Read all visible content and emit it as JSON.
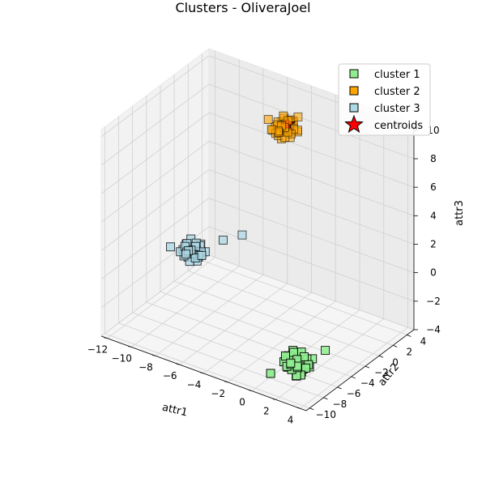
{
  "chart_data": {
    "type": "scatter",
    "projection": "3d",
    "title": "Clusters - OliveraJoel",
    "xlabel": "attr1",
    "ylabel": "attr2",
    "zlabel": "attr3",
    "xlim": [
      -12.5,
      4.5
    ],
    "ylim": [
      -10.5,
      5
    ],
    "zlim": [
      -4,
      10.5
    ],
    "xticks": [
      "−12",
      "−10",
      "−8",
      "−6",
      "−4",
      "−2",
      "0",
      "2",
      "4"
    ],
    "yticks": [
      "−10",
      "−8",
      "−6",
      "−4",
      "−2",
      "0",
      "2",
      "4"
    ],
    "zticks": [
      "−4",
      "−2",
      "0",
      "2",
      "4",
      "6",
      "8",
      "10"
    ],
    "xtick_values": [
      -12,
      -10,
      -8,
      -6,
      -4,
      -2,
      0,
      2,
      4
    ],
    "ytick_values": [
      -10,
      -8,
      -6,
      -4,
      -2,
      0,
      2,
      4
    ],
    "ztick_values": [
      -4,
      -2,
      0,
      2,
      4,
      6,
      8,
      10
    ],
    "grid": true,
    "legend": {
      "position": "top-right"
    },
    "marker": "square",
    "series": [
      {
        "name": "cluster 1",
        "color": "#90ee90",
        "center": [
          2.0,
          -7.5,
          -2.5
        ],
        "points": [
          [
            2.0,
            -7.5,
            -2.5
          ],
          [
            2.6,
            -7.1,
            -2.2
          ],
          [
            1.4,
            -7.9,
            -2.8
          ],
          [
            2.3,
            -8.0,
            -2.0
          ],
          [
            1.7,
            -7.0,
            -3.0
          ],
          [
            2.8,
            -7.6,
            -2.6
          ],
          [
            1.2,
            -7.4,
            -2.3
          ],
          [
            2.1,
            -6.8,
            -2.7
          ],
          [
            1.9,
            -8.2,
            -2.4
          ],
          [
            2.5,
            -7.8,
            -3.1
          ],
          [
            1.5,
            -7.2,
            -1.9
          ],
          [
            2.4,
            -7.3,
            -2.9
          ],
          [
            1.6,
            -7.7,
            -2.1
          ],
          [
            2.2,
            -7.9,
            -3.2
          ],
          [
            1.8,
            -7.1,
            -2.0
          ],
          [
            2.9,
            -7.4,
            -2.4
          ],
          [
            1.1,
            -7.8,
            -2.6
          ],
          [
            2.0,
            -8.4,
            -2.2
          ],
          [
            2.7,
            -6.9,
            -2.8
          ],
          [
            1.3,
            -7.6,
            -3.0
          ],
          [
            2.2,
            -7.2,
            -1.8
          ],
          [
            1.8,
            -7.9,
            -2.9
          ],
          [
            2.4,
            -8.1,
            -2.5
          ],
          [
            1.6,
            -6.9,
            -2.4
          ],
          [
            2.0,
            -7.6,
            -3.4
          ],
          [
            3.0,
            -7.0,
            -2.1
          ],
          [
            1.0,
            -7.3,
            -2.7
          ],
          [
            2.5,
            -8.3,
            -2.3
          ],
          [
            1.4,
            -8.1,
            -2.0
          ],
          [
            2.6,
            -7.5,
            -1.9
          ],
          [
            3.2,
            -5.5,
            -2.0
          ],
          [
            0.8,
            -9.2,
            -3.0
          ],
          [
            2.1,
            -7.0,
            -3.3
          ],
          [
            1.9,
            -7.8,
            -1.7
          ]
        ]
      },
      {
        "name": "cluster 2",
        "color": "#ffa500",
        "center": [
          -4.5,
          2.0,
          8.5
        ],
        "points": [
          [
            -4.5,
            2.0,
            8.5
          ],
          [
            -4.0,
            2.4,
            8.9
          ],
          [
            -5.0,
            1.6,
            8.1
          ],
          [
            -4.2,
            1.5,
            8.8
          ],
          [
            -4.8,
            2.5,
            8.2
          ],
          [
            -3.9,
            1.9,
            8.3
          ],
          [
            -5.1,
            2.1,
            8.7
          ],
          [
            -4.4,
            2.7,
            8.6
          ],
          [
            -4.6,
            1.3,
            8.4
          ],
          [
            -4.1,
            2.2,
            9.1
          ],
          [
            -4.9,
            1.8,
            7.9
          ],
          [
            -4.3,
            1.7,
            8.0
          ],
          [
            -4.7,
            2.3,
            9.0
          ],
          [
            -3.8,
            2.1,
            8.6
          ],
          [
            -5.2,
            1.9,
            8.4
          ],
          [
            -4.5,
            2.6,
            8.1
          ],
          [
            -4.4,
            1.4,
            8.9
          ],
          [
            -4.0,
            1.6,
            8.5
          ],
          [
            -5.0,
            2.4,
            8.6
          ],
          [
            -4.6,
            2.0,
            9.3
          ],
          [
            -4.2,
            2.3,
            7.8
          ],
          [
            -4.8,
            1.5,
            8.8
          ],
          [
            -3.7,
            2.5,
            8.4
          ],
          [
            -5.3,
            1.7,
            8.2
          ],
          [
            -4.5,
            1.1,
            8.6
          ],
          [
            -4.3,
            2.9,
            8.7
          ],
          [
            -4.7,
            1.9,
            7.7
          ],
          [
            -4.1,
            1.8,
            9.2
          ],
          [
            -4.9,
            2.2,
            8.0
          ],
          [
            -4.4,
            2.0,
            8.3
          ],
          [
            -3.5,
            2.2,
            9.5
          ],
          [
            -5.5,
            1.4,
            9.0
          ],
          [
            -4.0,
            3.0,
            8.0
          ],
          [
            -5.0,
            1.0,
            8.6
          ]
        ]
      },
      {
        "name": "cluster 3",
        "color": "#add8e6",
        "center": [
          -9.0,
          -3.5,
          0.5
        ],
        "points": [
          [
            -9.0,
            -3.5,
            0.5
          ],
          [
            -8.5,
            -3.2,
            0.9
          ],
          [
            -9.5,
            -3.8,
            0.1
          ],
          [
            -8.8,
            -4.0,
            0.8
          ],
          [
            -9.3,
            -3.0,
            0.2
          ],
          [
            -8.4,
            -3.6,
            0.4
          ],
          [
            -9.6,
            -3.3,
            0.7
          ],
          [
            -8.9,
            -2.9,
            0.3
          ],
          [
            -9.1,
            -4.1,
            0.6
          ],
          [
            -8.6,
            -3.7,
            1.0
          ],
          [
            -9.4,
            -3.4,
            -0.1
          ],
          [
            -8.7,
            -3.1,
            0.0
          ],
          [
            -9.2,
            -3.9,
            1.1
          ],
          [
            -8.3,
            -3.4,
            0.6
          ],
          [
            -9.7,
            -3.6,
            0.4
          ],
          [
            -9.0,
            -2.8,
            0.2
          ],
          [
            -8.9,
            -4.2,
            0.8
          ],
          [
            -8.5,
            -3.9,
            0.3
          ],
          [
            -9.5,
            -3.1,
            0.6
          ],
          [
            -9.1,
            -3.5,
            1.3
          ],
          [
            -8.7,
            -3.3,
            -0.2
          ],
          [
            -9.3,
            -4.0,
            0.9
          ],
          [
            -8.2,
            -3.0,
            0.5
          ],
          [
            -9.8,
            -3.8,
            0.3
          ],
          [
            -9.0,
            -4.4,
            0.6
          ],
          [
            -8.8,
            -2.6,
            0.7
          ],
          [
            -9.2,
            -3.5,
            -0.3
          ],
          [
            -8.6,
            -3.6,
            1.2
          ],
          [
            -9.4,
            -3.2,
            0.0
          ],
          [
            -8.9,
            -3.7,
            0.4
          ],
          [
            -7.0,
            -2.5,
            1.5
          ],
          [
            -10.5,
            -4.0,
            0.5
          ],
          [
            -7.8,
            -4.2,
            0.8
          ],
          [
            -6.0,
            -1.5,
            1.8
          ]
        ]
      },
      {
        "name": "centroids",
        "color": "#ff0000",
        "marker": "star",
        "points": [
          [
            -4.3,
            2.0,
            8.8
          ]
        ]
      }
    ]
  }
}
